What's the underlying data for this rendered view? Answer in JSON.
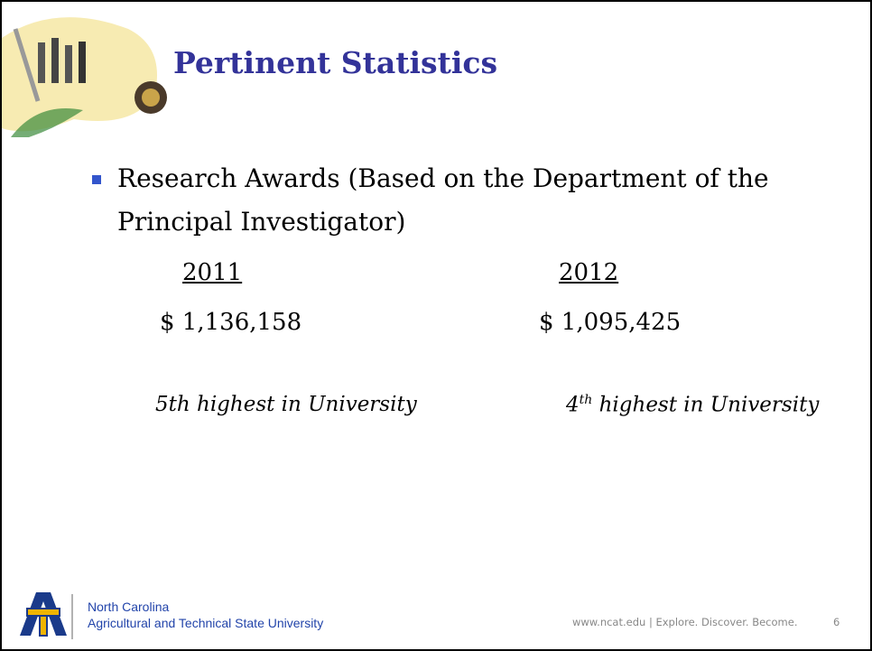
{
  "slide": {
    "title": "Pertinent Statistics",
    "bullet": "Research Awards (Based on the Department of the Principal Investigator)",
    "columns": [
      {
        "year": "2011",
        "amount": "$ 1,136,158",
        "rank": "5th highest in University"
      },
      {
        "year": "2012",
        "amount": "$ 1,095,425",
        "rank_number": "4",
        "rank_suffix": "th",
        "rank_text": " highest in University"
      }
    ],
    "footer": {
      "org_line1": "North Carolina",
      "org_line2": "Agricultural and Technical State University",
      "site": "www.ncat.edu | Explore. Discover. Become.",
      "page": "6"
    }
  }
}
